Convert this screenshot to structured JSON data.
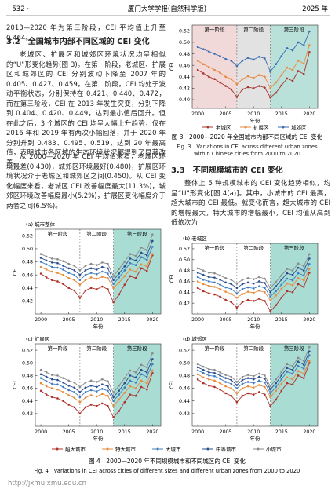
{
  "header": {
    "page": "· 532 ·",
    "journal": "厦门大学学报(自然科学版)",
    "year": "2025 年"
  },
  "left_text": {
    "line1": "2013—2020 年为第三阶段，CEI 平均值上升至 0.464。",
    "heading": "3.2　全国城市内部不同区域的 CEI 变化",
    "paragraphs": [
      "老城区、扩展区和城郊区环境状况均呈相似的“U”形变化趋势(图 3)。在第一阶段，老城区、扩展区和城郊区的 CEI 分别波动下降至 2007 年的 0.405、0.427、0.459，在第二阶段，CEI 均处于波动平衡状态，分别保持在 0.421、0.440、0.472，而在第三阶段，CEI 在 2013 年发生突变，分别下降到 0.404、0.420、0.449，达到最小值后回升。但在此之后，3 个城区的 CEI 均呈大幅上升趋势，仅在 2016 年和 2019 年有两次小幅回落，并于 2020 年分别升到 0.483、0.495、0.519，达到 20 年最高值，表明城市各区域的生态环境状况都得到了显著改善。",
      "从 2000—2020 年 CEI 平均值来看，老城区环境最差(0.430)，城郊区环境最好(0.480)，扩展区环境状况介于老城区和城郊区之间(0.450)。从 CEI 变化幅度来看，老城区 CEI 改善幅度最大(11.3%)，城郊区环境改善幅度最小(5.2%)，扩展区变化幅度介于两者之间(6.5%)。"
    ]
  },
  "right_text": {
    "heading": "3.3　不同规模城市的 CEI 变化",
    "paragraph": "整体上 5 种规模城市的 CEI 变化趋势相似，均呈“U”形变化[图 4(a)]。其中，小城市的 CEI 最高，超大城市的 CEI 最低。就变化而言，超大城市的 CEI 的增幅最大，特大城市的增幅最小，CEI 均值从高到低依次为"
  },
  "figure3": {
    "caption_cn": "图 3　2000—2020 年全国城市内部不同区域的 CEI 变化",
    "caption_en": "Fig. 3　Variations in CEI across different urban zones within Chinese cities from 2000 to 2020"
  },
  "figure4": {
    "caption_cn": "图 4　2000—2020 年不同规模城市和不同城区的 CEI 变化",
    "caption_en": "Fig. 4　Variations in CEI across cities of different sizes and different urban zones from 2000 to 2020"
  },
  "watermark": "http://jxmu.xmu.edu.cn",
  "chart_data": [
    {
      "type": "line",
      "xlabel": "年份",
      "ylabel": "CEI",
      "x": [
        2000,
        2001,
        2002,
        2003,
        2004,
        2005,
        2006,
        2007,
        2008,
        2009,
        2010,
        2011,
        2012,
        2013,
        2014,
        2015,
        2016,
        2017,
        2018,
        2019,
        2020
      ],
      "xlim": [
        1999,
        2021.5
      ],
      "xticks": [
        2000,
        2005,
        2010,
        2015,
        2020
      ],
      "ylim": [
        0.385,
        0.53
      ],
      "yticks": [
        {
          "value": 0.4,
          "label": "0.40"
        },
        0.42,
        0.44,
        0.46,
        0.48,
        {
          "value": 0.5,
          "label": "0.50"
        },
        0.52
      ],
      "phases": [
        {
          "label": "第一阶段",
          "start": 1999,
          "end": 2007,
          "color": "#f1d9d9"
        },
        {
          "label": "第二阶段",
          "start": 2007,
          "end": 2013,
          "color": "#e2e2e2"
        },
        {
          "label": "第三阶段",
          "start": 2013,
          "end": 2021.5,
          "color": "#b9e1d9"
        }
      ],
      "series": [
        {
          "name": "老城区",
          "color": "#a8362f",
          "values": [
            0.452,
            0.446,
            0.44,
            0.436,
            0.43,
            0.424,
            0.418,
            0.405,
            0.418,
            0.422,
            0.42,
            0.424,
            0.421,
            0.404,
            0.412,
            0.425,
            0.437,
            0.433,
            0.45,
            0.445,
            0.483
          ]
        },
        {
          "name": "扩展区",
          "color": "#e8893c",
          "values": [
            0.468,
            0.462,
            0.457,
            0.452,
            0.447,
            0.44,
            0.436,
            0.427,
            0.436,
            0.441,
            0.438,
            0.443,
            0.44,
            0.42,
            0.43,
            0.443,
            0.456,
            0.452,
            0.468,
            0.463,
            0.495
          ]
        },
        {
          "name": "城郊区",
          "color": "#3b6db3",
          "values": [
            0.492,
            0.488,
            0.484,
            0.48,
            0.476,
            0.471,
            0.468,
            0.459,
            0.468,
            0.473,
            0.47,
            0.475,
            0.472,
            0.449,
            0.462,
            0.476,
            0.49,
            0.486,
            0.5,
            0.495,
            0.519
          ]
        }
      ]
    },
    {
      "type": "line",
      "title": "(a) 城市整体",
      "xlabel": "年份",
      "ylabel": "CEI",
      "x": [
        2000,
        2001,
        2002,
        2003,
        2004,
        2005,
        2006,
        2007,
        2008,
        2009,
        2010,
        2011,
        2012,
        2013,
        2014,
        2015,
        2016,
        2017,
        2018,
        2019,
        2020
      ],
      "xlim": [
        1999,
        2021.5
      ],
      "xticks": [
        2000,
        2005,
        2010,
        2015,
        2020
      ],
      "ylim": [
        0.4,
        0.53
      ],
      "yticks": [
        0.42,
        0.44,
        0.46,
        0.48,
        {
          "value": 0.5,
          "label": "0.50"
        },
        0.52
      ],
      "phases": [
        {
          "label": "第一阶段",
          "start": 1999,
          "end": 2007,
          "color": "#ffffff"
        },
        {
          "label": "第二阶段",
          "start": 2007,
          "end": 2013,
          "color": "#ffffff"
        },
        {
          "label": "第三阶段",
          "start": 2013,
          "end": 2021.5,
          "color": "#a9dcd3"
        }
      ],
      "series": [
        {
          "name": "超大城市",
          "color": "#b0302a",
          "values": [
            0.462,
            0.456,
            0.452,
            0.45,
            0.446,
            0.44,
            0.436,
            0.425,
            0.436,
            0.44,
            0.438,
            0.442,
            0.438,
            0.418,
            0.43,
            0.445,
            0.458,
            0.455,
            0.47,
            0.466,
            0.49
          ]
        },
        {
          "name": "特大城市",
          "color": "#e88a3a",
          "values": [
            0.472,
            0.468,
            0.465,
            0.463,
            0.46,
            0.455,
            0.452,
            0.445,
            0.452,
            0.456,
            0.454,
            0.457,
            0.455,
            0.44,
            0.448,
            0.458,
            0.468,
            0.465,
            0.476,
            0.473,
            0.492
          ]
        },
        {
          "name": "大城市",
          "color": "#3f7cc0",
          "values": [
            0.48,
            0.476,
            0.472,
            0.471,
            0.468,
            0.463,
            0.46,
            0.452,
            0.46,
            0.463,
            0.461,
            0.465,
            0.462,
            0.446,
            0.456,
            0.467,
            0.478,
            0.475,
            0.487,
            0.483,
            0.503
          ]
        },
        {
          "name": "中等城市",
          "color": "#2a4d8f",
          "values": [
            0.486,
            0.482,
            0.479,
            0.478,
            0.474,
            0.47,
            0.467,
            0.46,
            0.467,
            0.47,
            0.468,
            0.472,
            0.47,
            0.452,
            0.462,
            0.473,
            0.485,
            0.482,
            0.494,
            0.49,
            0.512
          ]
        },
        {
          "name": "小城市",
          "color": "#8a8a8a",
          "values": [
            0.492,
            0.488,
            0.485,
            0.484,
            0.481,
            0.477,
            0.474,
            0.467,
            0.474,
            0.477,
            0.475,
            0.479,
            0.477,
            0.458,
            0.469,
            0.48,
            0.492,
            0.489,
            0.502,
            0.498,
            0.522
          ]
        }
      ]
    },
    {
      "type": "line",
      "title": "(b) 老城区",
      "xlabel": "年份",
      "ylabel": "CEI",
      "x": [
        2000,
        2001,
        2002,
        2003,
        2004,
        2005,
        2006,
        2007,
        2008,
        2009,
        2010,
        2011,
        2012,
        2013,
        2014,
        2015,
        2016,
        2017,
        2018,
        2019,
        2020
      ],
      "xlim": [
        1999,
        2021.5
      ],
      "xticks": [
        2000,
        2005,
        2010,
        2015,
        2020
      ],
      "ylim": [
        0.4,
        0.53
      ],
      "yticks": [
        0.42,
        0.44,
        0.46,
        0.48,
        {
          "value": 0.5,
          "label": "0.50"
        },
        0.52
      ],
      "phases": [
        {
          "label": "第一阶段",
          "start": 1999,
          "end": 2007,
          "color": "#ffffff"
        },
        {
          "label": "第二阶段",
          "start": 2007,
          "end": 2013,
          "color": "#ffffff"
        },
        {
          "label": "第三阶段",
          "start": 2013,
          "end": 2021.5,
          "color": "#a9dcd3"
        }
      ],
      "series": [
        {
          "name": "超大城市",
          "color": "#b0302a",
          "values": [
            0.448,
            0.442,
            0.438,
            0.436,
            0.432,
            0.426,
            0.422,
            0.412,
            0.422,
            0.426,
            0.424,
            0.428,
            0.424,
            0.405,
            0.416,
            0.43,
            0.442,
            0.44,
            0.455,
            0.45,
            0.476
          ]
        },
        {
          "name": "特大城市",
          "color": "#e88a3a",
          "values": [
            0.46,
            0.455,
            0.452,
            0.45,
            0.446,
            0.441,
            0.437,
            0.43,
            0.437,
            0.441,
            0.439,
            0.443,
            0.44,
            0.425,
            0.434,
            0.446,
            0.456,
            0.453,
            0.466,
            0.462,
            0.483
          ]
        },
        {
          "name": "大城市",
          "color": "#3f7cc0",
          "values": [
            0.468,
            0.463,
            0.46,
            0.458,
            0.454,
            0.449,
            0.446,
            0.438,
            0.446,
            0.449,
            0.447,
            0.451,
            0.448,
            0.432,
            0.442,
            0.454,
            0.465,
            0.462,
            0.475,
            0.471,
            0.492
          ]
        },
        {
          "name": "中等城市",
          "color": "#2a4d8f",
          "values": [
            0.476,
            0.472,
            0.468,
            0.467,
            0.463,
            0.458,
            0.455,
            0.448,
            0.455,
            0.458,
            0.456,
            0.46,
            0.457,
            0.44,
            0.451,
            0.463,
            0.475,
            0.472,
            0.485,
            0.48,
            0.502
          ]
        },
        {
          "name": "小城市",
          "color": "#8a8a8a",
          "values": [
            0.484,
            0.48,
            0.476,
            0.475,
            0.471,
            0.466,
            0.463,
            0.456,
            0.463,
            0.466,
            0.464,
            0.468,
            0.465,
            0.448,
            0.459,
            0.471,
            0.483,
            0.48,
            0.493,
            0.488,
            0.51
          ]
        }
      ]
    },
    {
      "type": "line",
      "title": "(c) 扩展区",
      "xlabel": "年份",
      "ylabel": "CEI",
      "x": [
        2000,
        2001,
        2002,
        2003,
        2004,
        2005,
        2006,
        2007,
        2008,
        2009,
        2010,
        2011,
        2012,
        2013,
        2014,
        2015,
        2016,
        2017,
        2018,
        2019,
        2020
      ],
      "xlim": [
        1999,
        2021.5
      ],
      "xticks": [
        2000,
        2005,
        2010,
        2015,
        2020
      ],
      "ylim": [
        0.4,
        0.53
      ],
      "yticks": [
        0.42,
        0.44,
        0.46,
        0.48,
        {
          "value": 0.5,
          "label": "0.50"
        },
        0.52
      ],
      "phases": [
        {
          "label": "第一阶段",
          "start": 1999,
          "end": 2007,
          "color": "#ffffff"
        },
        {
          "label": "第二阶段",
          "start": 2007,
          "end": 2013,
          "color": "#ffffff"
        },
        {
          "label": "第三阶段",
          "start": 2013,
          "end": 2021.5,
          "color": "#a9dcd3"
        }
      ],
      "series": [
        {
          "name": "超大城市",
          "color": "#b0302a",
          "values": [
            0.456,
            0.45,
            0.446,
            0.444,
            0.44,
            0.434,
            0.43,
            0.42,
            0.43,
            0.434,
            0.432,
            0.436,
            0.432,
            0.414,
            0.424,
            0.438,
            0.45,
            0.448,
            0.462,
            0.458,
            0.484
          ]
        },
        {
          "name": "特大城市",
          "color": "#e88a3a",
          "values": [
            0.468,
            0.463,
            0.46,
            0.458,
            0.454,
            0.449,
            0.445,
            0.438,
            0.445,
            0.449,
            0.447,
            0.451,
            0.448,
            0.432,
            0.442,
            0.453,
            0.463,
            0.46,
            0.472,
            0.468,
            0.488
          ]
        },
        {
          "name": "大城市",
          "color": "#3f7cc0",
          "values": [
            0.476,
            0.471,
            0.467,
            0.466,
            0.462,
            0.457,
            0.454,
            0.446,
            0.454,
            0.457,
            0.455,
            0.459,
            0.456,
            0.44,
            0.45,
            0.461,
            0.472,
            0.469,
            0.482,
            0.478,
            0.498
          ]
        },
        {
          "name": "中等城市",
          "color": "#2a4d8f",
          "values": [
            0.482,
            0.478,
            0.474,
            0.473,
            0.469,
            0.464,
            0.461,
            0.454,
            0.461,
            0.464,
            0.462,
            0.466,
            0.463,
            0.446,
            0.456,
            0.468,
            0.48,
            0.477,
            0.489,
            0.485,
            0.506
          ]
        },
        {
          "name": "小城市",
          "color": "#8a8a8a",
          "values": [
            0.489,
            0.485,
            0.481,
            0.48,
            0.476,
            0.472,
            0.469,
            0.462,
            0.469,
            0.472,
            0.47,
            0.474,
            0.471,
            0.453,
            0.464,
            0.476,
            0.488,
            0.485,
            0.497,
            0.493,
            0.515
          ]
        }
      ]
    },
    {
      "type": "line",
      "title": "(d) 城郊区",
      "xlabel": "年份",
      "ylabel": "CEI",
      "x": [
        2000,
        2001,
        2002,
        2003,
        2004,
        2005,
        2006,
        2007,
        2008,
        2009,
        2010,
        2011,
        2012,
        2013,
        2014,
        2015,
        2016,
        2017,
        2018,
        2019,
        2020
      ],
      "xlim": [
        1999,
        2021.5
      ],
      "xticks": [
        2000,
        2005,
        2010,
        2015,
        2020
      ],
      "ylim": [
        0.4,
        0.53
      ],
      "yticks": [
        0.42,
        0.44,
        0.46,
        0.48,
        {
          "value": 0.5,
          "label": "0.50"
        },
        0.52
      ],
      "phases": [
        {
          "label": "第一阶段",
          "start": 1999,
          "end": 2007,
          "color": "#ffffff"
        },
        {
          "label": "第二阶段",
          "start": 2007,
          "end": 2013,
          "color": "#ffffff"
        },
        {
          "label": "第三阶段",
          "start": 2013,
          "end": 2021.5,
          "color": "#a9dcd3"
        }
      ],
      "series": [
        {
          "name": "超大城市",
          "color": "#b0302a",
          "values": [
            0.474,
            0.468,
            0.464,
            0.462,
            0.458,
            0.452,
            0.448,
            0.438,
            0.448,
            0.452,
            0.45,
            0.454,
            0.45,
            0.432,
            0.442,
            0.456,
            0.468,
            0.466,
            0.48,
            0.476,
            0.5
          ]
        },
        {
          "name": "特大城市",
          "color": "#e88a3a",
          "values": [
            0.482,
            0.477,
            0.474,
            0.472,
            0.468,
            0.463,
            0.46,
            0.452,
            0.46,
            0.463,
            0.461,
            0.465,
            0.462,
            0.446,
            0.456,
            0.467,
            0.477,
            0.474,
            0.487,
            0.483,
            0.503
          ]
        },
        {
          "name": "大城市",
          "color": "#3f7cc0",
          "values": [
            0.488,
            0.484,
            0.48,
            0.479,
            0.475,
            0.47,
            0.467,
            0.46,
            0.467,
            0.47,
            0.468,
            0.472,
            0.469,
            0.452,
            0.462,
            0.474,
            0.486,
            0.483,
            0.495,
            0.491,
            0.512
          ]
        },
        {
          "name": "中等城市",
          "color": "#2a4d8f",
          "values": [
            0.493,
            0.489,
            0.485,
            0.484,
            0.48,
            0.476,
            0.473,
            0.465,
            0.473,
            0.476,
            0.474,
            0.478,
            0.475,
            0.458,
            0.468,
            0.48,
            0.492,
            0.489,
            0.502,
            0.497,
            0.518
          ]
        },
        {
          "name": "小城市",
          "color": "#8a8a8a",
          "values": [
            0.498,
            0.494,
            0.49,
            0.489,
            0.485,
            0.481,
            0.478,
            0.47,
            0.478,
            0.481,
            0.479,
            0.483,
            0.48,
            0.463,
            0.474,
            0.486,
            0.498,
            0.495,
            0.508,
            0.503,
            0.525
          ]
        }
      ]
    }
  ]
}
